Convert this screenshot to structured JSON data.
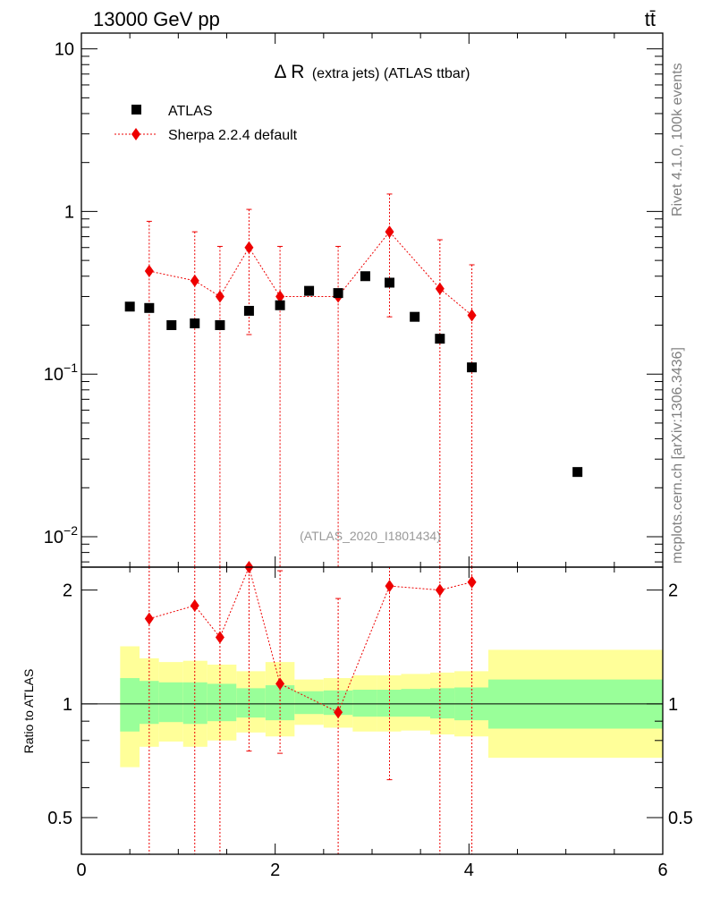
{
  "header": {
    "left_label": "13000 GeV pp",
    "right_label": "tt̄"
  },
  "side_labels": {
    "rivet": "Rivet 4.1.0,  100k events",
    "mcplots": "mcplots.cern.ch [arXiv:1306.3436]"
  },
  "chart_data": {
    "type": "scatter",
    "title_main": "Δ R",
    "title_sub": "(extra jets) (ATLAS ttbar)",
    "watermark": "(ATLAS_2020_I1801434)",
    "xlabel": "",
    "ylabel": "",
    "ratio_ylabel": "Ratio to ATLAS",
    "xlim": [
      0,
      6
    ],
    "ylim_log": [
      0.0065,
      12.5
    ],
    "ratio_ylim": [
      0.4,
      2.3
    ],
    "x_ticks": [
      "0",
      "2",
      "4",
      "6"
    ],
    "y_ticks": [
      {
        "value": 10,
        "mantissa": "10",
        "exp": ""
      },
      {
        "value": 1,
        "mantissa": "1",
        "exp": ""
      },
      {
        "value": 0.1,
        "mantissa": "10",
        "exp": "−1"
      },
      {
        "value": 0.01,
        "mantissa": "10",
        "exp": "−2"
      }
    ],
    "ratio_ticks": [
      "0.5",
      "1",
      "2"
    ],
    "legend": [
      {
        "name": "ATLAS",
        "marker": "square",
        "color": "#000000"
      },
      {
        "name": "Sherpa 2.2.4 default",
        "marker": "diamond",
        "color": "#ee0000"
      }
    ],
    "atlas": {
      "points": [
        {
          "x": 0.5,
          "y": 0.26
        },
        {
          "x": 0.7,
          "y": 0.255
        },
        {
          "x": 0.93,
          "y": 0.2
        },
        {
          "x": 1.17,
          "y": 0.205
        },
        {
          "x": 1.43,
          "y": 0.2
        },
        {
          "x": 1.73,
          "y": 0.245
        },
        {
          "x": 2.05,
          "y": 0.265
        },
        {
          "x": 2.35,
          "y": 0.325
        },
        {
          "x": 2.65,
          "y": 0.315
        },
        {
          "x": 2.93,
          "y": 0.4
        },
        {
          "x": 3.18,
          "y": 0.365
        },
        {
          "x": 3.44,
          "y": 0.225
        },
        {
          "x": 3.7,
          "y": 0.165
        },
        {
          "x": 4.03,
          "y": 0.11
        },
        {
          "x": 5.12,
          "y": 0.025
        }
      ],
      "bands": [
        {
          "x0": 0.4,
          "x1": 0.6,
          "g_lo": 0.845,
          "g_hi": 1.17,
          "y_lo": 0.68,
          "y_hi": 1.42
        },
        {
          "x0": 0.6,
          "x1": 0.8,
          "g_lo": 0.885,
          "g_hi": 1.15,
          "y_lo": 0.77,
          "y_hi": 1.32
        },
        {
          "x0": 0.8,
          "x1": 1.05,
          "g_lo": 0.895,
          "g_hi": 1.14,
          "y_lo": 0.795,
          "y_hi": 1.29
        },
        {
          "x0": 1.05,
          "x1": 1.3,
          "g_lo": 0.885,
          "g_hi": 1.14,
          "y_lo": 0.77,
          "y_hi": 1.3
        },
        {
          "x0": 1.3,
          "x1": 1.6,
          "g_lo": 0.9,
          "g_hi": 1.13,
          "y_lo": 0.8,
          "y_hi": 1.27
        },
        {
          "x0": 1.6,
          "x1": 1.9,
          "g_lo": 0.92,
          "g_hi": 1.1,
          "y_lo": 0.84,
          "y_hi": 1.22
        },
        {
          "x0": 1.9,
          "x1": 2.2,
          "g_lo": 0.905,
          "g_hi": 1.12,
          "y_lo": 0.82,
          "y_hi": 1.29
        },
        {
          "x0": 2.2,
          "x1": 2.5,
          "g_lo": 0.94,
          "g_hi": 1.08,
          "y_lo": 0.88,
          "y_hi": 1.16
        },
        {
          "x0": 2.5,
          "x1": 2.8,
          "g_lo": 0.935,
          "g_hi": 1.085,
          "y_lo": 0.865,
          "y_hi": 1.17
        },
        {
          "x0": 2.8,
          "x1": 3.05,
          "g_lo": 0.925,
          "g_hi": 1.09,
          "y_lo": 0.845,
          "y_hi": 1.19
        },
        {
          "x0": 3.05,
          "x1": 3.3,
          "g_lo": 0.925,
          "g_hi": 1.09,
          "y_lo": 0.845,
          "y_hi": 1.19
        },
        {
          "x0": 3.3,
          "x1": 3.6,
          "g_lo": 0.925,
          "g_hi": 1.095,
          "y_lo": 0.85,
          "y_hi": 1.2
        },
        {
          "x0": 3.6,
          "x1": 3.85,
          "g_lo": 0.915,
          "g_hi": 1.1,
          "y_lo": 0.83,
          "y_hi": 1.21
        },
        {
          "x0": 3.85,
          "x1": 4.2,
          "g_lo": 0.905,
          "g_hi": 1.105,
          "y_lo": 0.82,
          "y_hi": 1.22
        },
        {
          "x0": 4.2,
          "x1": 6.0,
          "g_lo": 0.86,
          "g_hi": 1.16,
          "y_lo": 0.72,
          "y_hi": 1.39
        }
      ]
    },
    "sherpa": {
      "points": [
        {
          "x": 0.7,
          "y": 0.43,
          "y_lo": 0.0001,
          "y_hi": 0.87,
          "r": 1.68,
          "r_lo": 0.3,
          "r_hi": 3.0
        },
        {
          "x": 1.17,
          "y": 0.375,
          "y_lo": 0.0001,
          "y_hi": 0.75,
          "r": 1.82,
          "r_lo": 0.3,
          "r_hi": 3.0
        },
        {
          "x": 1.43,
          "y": 0.3,
          "y_lo": 0.0001,
          "y_hi": 0.61,
          "r": 1.5,
          "r_lo": 0.3,
          "r_hi": 3.0
        },
        {
          "x": 1.73,
          "y": 0.6,
          "y_lo": 0.175,
          "y_hi": 1.03,
          "r": 2.45,
          "r_lo": 0.75,
          "r_hi": 3.0
        },
        {
          "x": 2.05,
          "y": 0.3,
          "y_lo": 0.0001,
          "y_hi": 0.61,
          "r": 1.13,
          "r_lo": 0.74,
          "r_hi": 2.25
        },
        {
          "x": 2.65,
          "y": 0.3,
          "y_lo": 0.0001,
          "y_hi": 0.61,
          "r": 0.95,
          "r_lo": 0.3,
          "r_hi": 1.9
        },
        {
          "x": 3.18,
          "y": 0.75,
          "y_lo": 0.225,
          "y_hi": 1.28,
          "r": 2.05,
          "r_lo": 0.63,
          "r_hi": 3.0
        },
        {
          "x": 3.7,
          "y": 0.335,
          "y_lo": 0.0001,
          "y_hi": 0.67,
          "r": 2.0,
          "r_lo": 0.3,
          "r_hi": 3.0
        },
        {
          "x": 4.03,
          "y": 0.23,
          "y_lo": 0.0001,
          "y_hi": 0.47,
          "r": 2.1,
          "r_lo": 0.3,
          "r_hi": 3.0
        }
      ]
    },
    "colors": {
      "sherpa": "#ee0000",
      "atlas": "#000000",
      "band_inner": "#99ff99",
      "band_outer": "#ffff99",
      "watermark": "#999999",
      "side_text": "#808080"
    }
  }
}
